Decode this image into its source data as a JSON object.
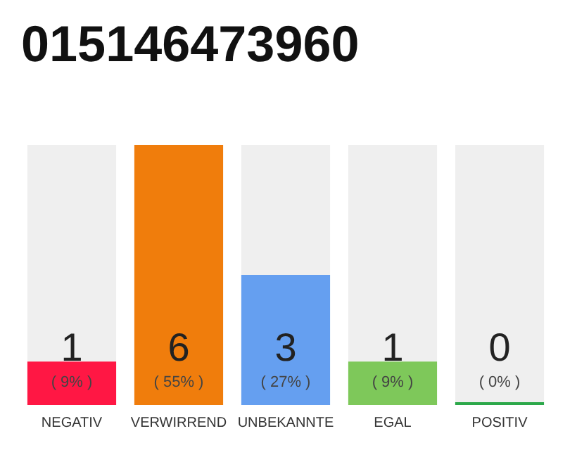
{
  "chart_data": {
    "type": "bar",
    "title": "015146473960",
    "categories": [
      "NEGATIV",
      "VERWIRREND",
      "UNBEKANNTE",
      "EGAL",
      "POSITIV"
    ],
    "values": [
      1,
      6,
      3,
      1,
      0
    ],
    "colors": [
      "#ff1744",
      "#f07d0c",
      "#659ff0",
      "#7ec85a",
      "#2ca84a"
    ],
    "value_labels": [
      "1\n( 9% )",
      "6\n( 55% )",
      "3\n( 27% )",
      "1\n( 9% )",
      "0\n( 0% )"
    ],
    "ylim": [
      0,
      6
    ]
  }
}
